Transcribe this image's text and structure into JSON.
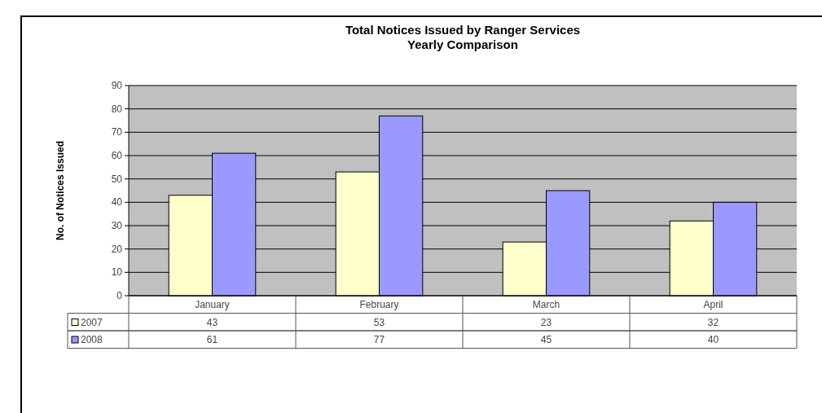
{
  "chart_data": {
    "type": "bar",
    "title": "Total Notices Issued by Ranger Services",
    "subtitle": "Yearly Comparison",
    "ylabel": "No. of Notices Issued",
    "categories": [
      "January",
      "February",
      "March",
      "April"
    ],
    "series": [
      {
        "name": "2007",
        "color": "#ffffcc",
        "values": [
          43,
          53,
          23,
          32
        ]
      },
      {
        "name": "2008",
        "color": "#9999ff",
        "values": [
          61,
          77,
          45,
          40
        ]
      }
    ],
    "ylim": [
      0,
      90
    ],
    "yticks": [
      0,
      10,
      20,
      30,
      40,
      50,
      60,
      70,
      80,
      90
    ],
    "grid": "y",
    "legend": "bottom",
    "data_labels": true
  }
}
